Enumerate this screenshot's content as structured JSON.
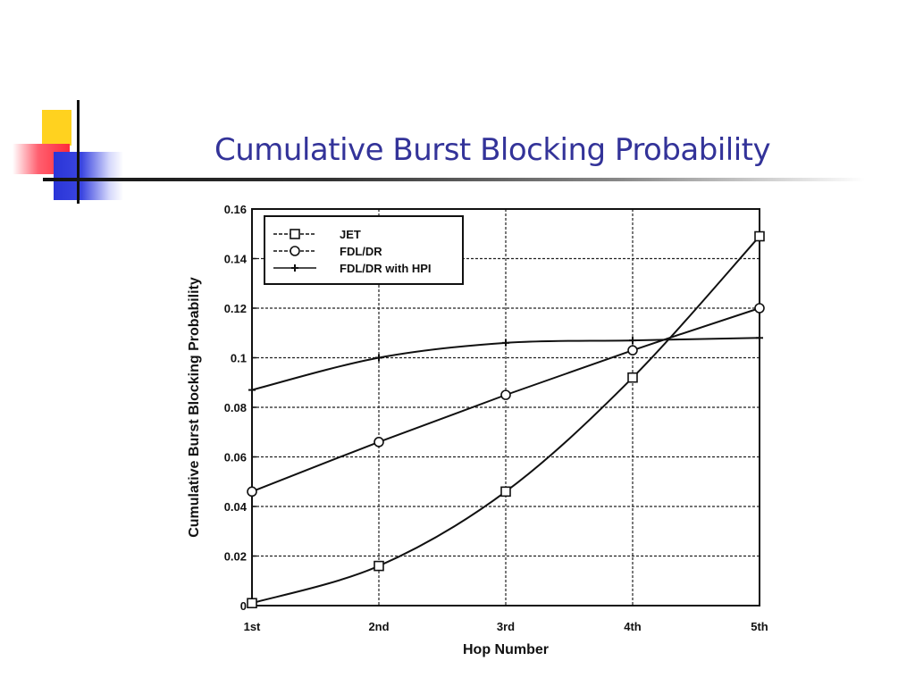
{
  "slide": {
    "title": "Cumulative Burst Blocking Probability"
  },
  "chart_data": {
    "type": "line",
    "title": "",
    "xlabel": "Hop Number",
    "ylabel": "Cumulative Burst Blocking Probability",
    "categories": [
      "1st",
      "2nd",
      "3rd",
      "4th",
      "5th"
    ],
    "ylim": [
      0,
      0.16
    ],
    "yticks": [
      0,
      0.02,
      0.04,
      0.06,
      0.08,
      0.1,
      0.12,
      0.14,
      0.16
    ],
    "ytick_labels": [
      "0",
      "0.02",
      "0.04",
      "0.06",
      "0.08",
      "0.1",
      "0.12",
      "0.14",
      "0.16"
    ],
    "grid": true,
    "legend_position": "top-left",
    "series": [
      {
        "name": "JET",
        "marker": "square",
        "values": [
          0.001,
          0.016,
          0.046,
          0.092,
          0.149
        ]
      },
      {
        "name": "FDL/DR",
        "marker": "circle",
        "values": [
          0.046,
          0.066,
          0.085,
          0.103,
          0.12
        ]
      },
      {
        "name": "FDL/DR with HPI",
        "marker": "plus",
        "values": [
          0.087,
          0.1,
          0.106,
          0.107,
          0.108
        ]
      }
    ]
  }
}
